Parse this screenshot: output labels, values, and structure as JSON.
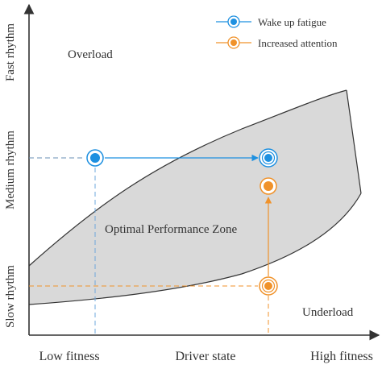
{
  "diagram": {
    "axes": {
      "y_tick_labels": [
        "Fast rhythm",
        "Medium rhythm",
        "Slow rhythm"
      ],
      "x_tick_labels": [
        "Low fitness",
        "Driver state",
        "High fitness"
      ]
    },
    "regions": {
      "upper_label": "Overload",
      "middle_label": "Optimal Performance Zone",
      "lower_label": "Underload"
    },
    "legend": [
      {
        "label": "Wake up fatigue",
        "color": "#1e90e0",
        "marker": "circle-ring"
      },
      {
        "label": "Increased attention",
        "color": "#f0922a",
        "marker": "circle-ring"
      }
    ],
    "colors": {
      "zone_fill": "#d9d9d9",
      "axis": "#333333",
      "blue": "#1e90e0",
      "orange": "#f0922a"
    }
  }
}
